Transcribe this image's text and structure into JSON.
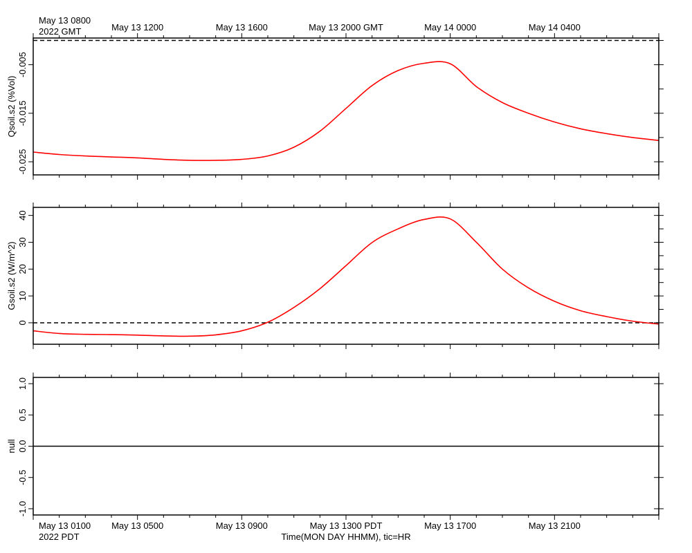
{
  "chart_data": {
    "type": "line",
    "time_axis": {
      "x_start_hr": 0,
      "x_end_hr": 24,
      "top_labels": [
        {
          "hr": 0,
          "text": "May 13 0800"
        },
        {
          "hr": 4,
          "text": "May 13 1200"
        },
        {
          "hr": 8,
          "text": "May 13 1600"
        },
        {
          "hr": 12,
          "text": "May 13 2000 GMT"
        },
        {
          "hr": 16,
          "text": "May 14 0000"
        },
        {
          "hr": 20,
          "text": "May 14 0400"
        }
      ],
      "top_year": "2022 GMT",
      "bottom_labels": [
        {
          "hr": 0,
          "text": "May 13 0100"
        },
        {
          "hr": 4,
          "text": "May 13 0500"
        },
        {
          "hr": 8,
          "text": "May 13 0900"
        },
        {
          "hr": 12,
          "text": "May 13 1300 PDT"
        },
        {
          "hr": 16,
          "text": "May 13 1700"
        },
        {
          "hr": 20,
          "text": "May 13 2100"
        }
      ],
      "bottom_year": "2022 PDT",
      "xlabel": "Time(MON DAY HHMM), tic=HR",
      "minor_tick_hours": [
        1,
        2,
        3,
        4,
        5,
        6,
        7,
        8,
        9,
        10,
        11,
        12,
        13,
        14,
        15,
        16,
        17,
        18,
        19,
        20,
        21,
        22,
        23
      ],
      "major_tick_hours": [
        0,
        4,
        8,
        12,
        16,
        20
      ]
    },
    "panels": [
      {
        "name": "qsoil",
        "ylabel": "Qsoil.s2 (%Vol)",
        "ylim": [
          -0.0277,
          0.0005
        ],
        "yticks": [
          -0.025,
          -0.015,
          -0.005
        ],
        "yticklabels": [
          "-0.025",
          "-0.015",
          "-0.005"
        ],
        "minor_yticks": [
          -0.02,
          -0.01,
          0.0
        ],
        "reference_line": {
          "value": 0.0,
          "style": "dashed"
        },
        "series": [
          {
            "name": "Qsoil.s2",
            "color": "#ff0000",
            "x": [
              0,
              1,
              2,
              3,
              4,
              5,
              6,
              7,
              8,
              9,
              10,
              11,
              12,
              13,
              14,
              15,
              16,
              17,
              18,
              19,
              20,
              21,
              22,
              23,
              24
            ],
            "y": [
              -0.023,
              -0.0235,
              -0.0238,
              -0.024,
              -0.0242,
              -0.0245,
              -0.0247,
              -0.0247,
              -0.0245,
              -0.0238,
              -0.022,
              -0.0187,
              -0.014,
              -0.0093,
              -0.0062,
              -0.0047,
              -0.0048,
              -0.0095,
              -0.0128,
              -0.015,
              -0.0168,
              -0.0182,
              -0.0192,
              -0.02,
              -0.0206
            ]
          }
        ]
      },
      {
        "name": "gsoil",
        "ylabel": "Gsoil.s2 (W/m^2)",
        "ylim": [
          -8,
          43
        ],
        "yticks": [
          0,
          10,
          20,
          30,
          40
        ],
        "yticklabels": [
          "0",
          "10",
          "20",
          "30",
          "40"
        ],
        "minor_yticks": [
          5,
          15,
          25,
          35
        ],
        "reference_line": {
          "value": 0,
          "style": "dashed"
        },
        "series": [
          {
            "name": "Gsoil.s2",
            "color": "#ff0000",
            "x": [
              0,
              1,
              2,
              3,
              4,
              5,
              6,
              7,
              8,
              9,
              10,
              11,
              12,
              13,
              14,
              15,
              16,
              17,
              18,
              19,
              20,
              21,
              22,
              23,
              24
            ],
            "y": [
              -3.0,
              -4.0,
              -4.3,
              -4.4,
              -4.6,
              -4.9,
              -5.0,
              -4.5,
              -3.0,
              0.2,
              5.7,
              12.7,
              21.3,
              29.9,
              35.0,
              38.5,
              38.7,
              30.0,
              20.0,
              13.0,
              8.0,
              4.5,
              2.3,
              0.6,
              -0.5
            ]
          }
        ]
      },
      {
        "name": "null",
        "ylabel": "null",
        "ylim": [
          -1.1,
          1.1
        ],
        "yticks": [
          -1.0,
          -0.5,
          0.0,
          0.5,
          1.0
        ],
        "yticklabels": [
          "-1.0",
          "-0.5",
          "0.0",
          "0.5",
          "1.0"
        ],
        "minor_yticks": [],
        "reference_line": {
          "value": 0.0,
          "style": "solid"
        },
        "series": []
      }
    ]
  }
}
